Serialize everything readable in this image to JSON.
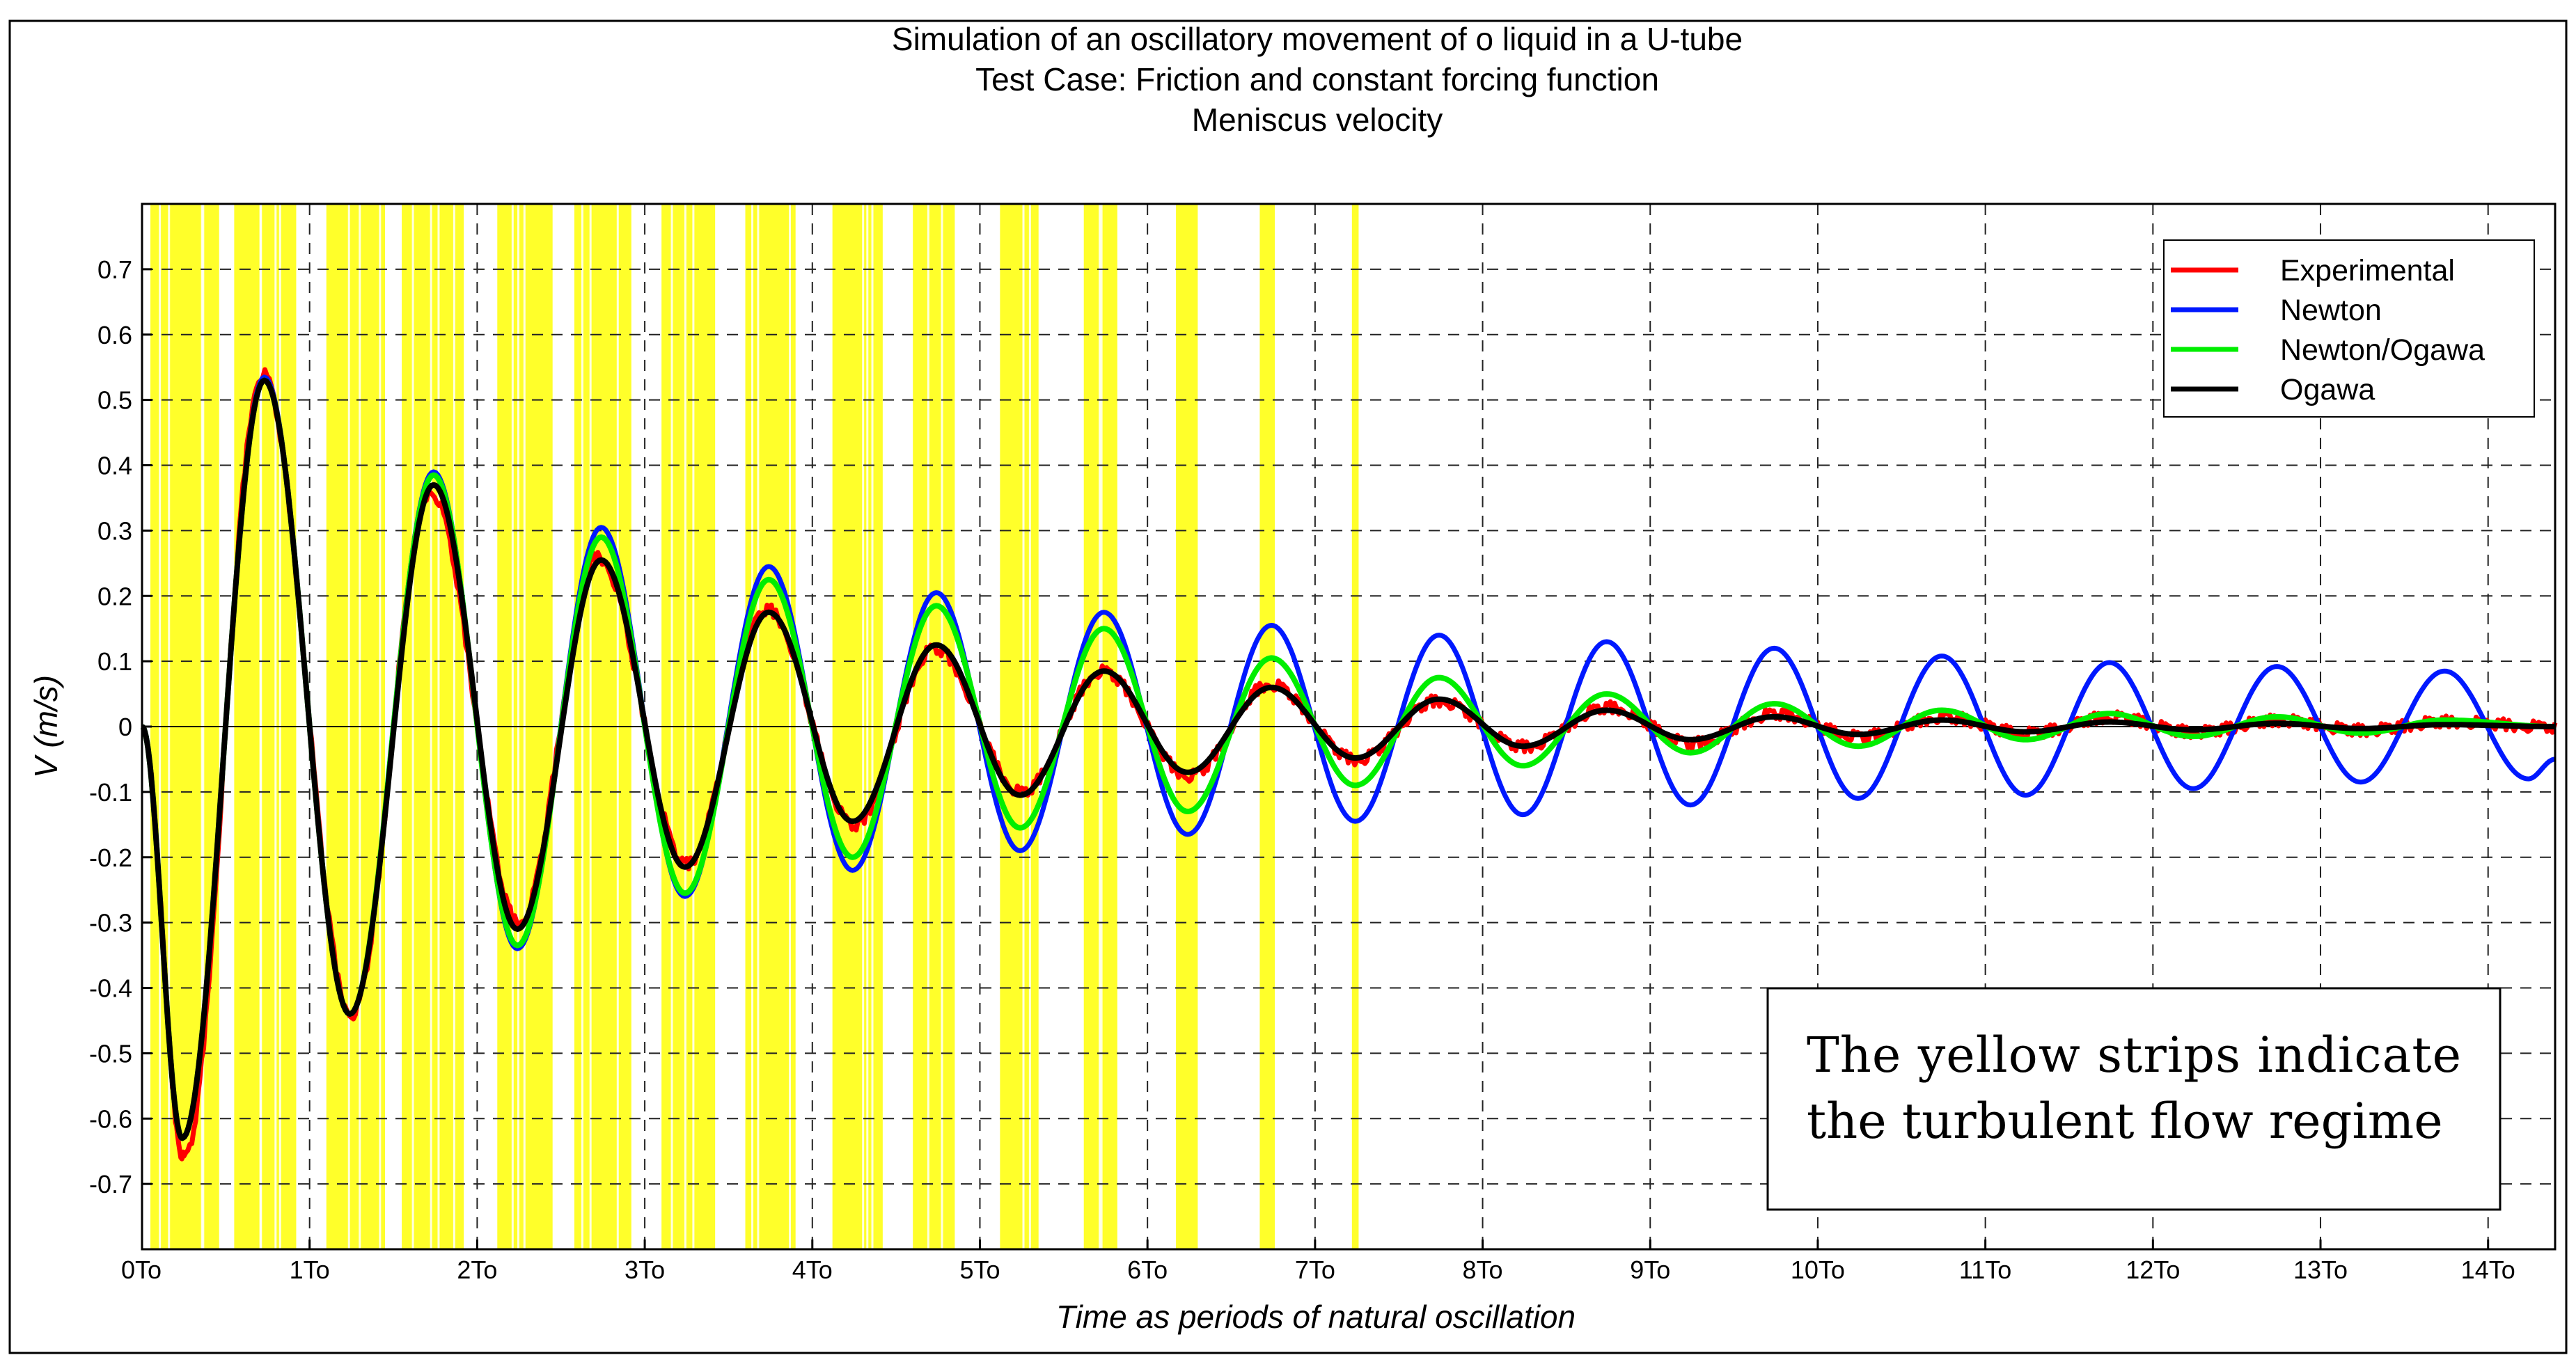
{
  "chart_data": {
    "type": "line",
    "title_lines": [
      "Simulation of an oscillatory movement of o liquid in a U-tube",
      "Test Case: Friction and constant forcing function",
      "Meniscus velocity"
    ],
    "xlabel": "Time as periods of natural oscillation",
    "ylabel": "V (m/s)",
    "xlim": [
      0,
      14.4
    ],
    "ylim": [
      -0.8,
      0.8
    ],
    "x_ticks": [
      0,
      1,
      2,
      3,
      4,
      5,
      6,
      7,
      8,
      9,
      10,
      11,
      12,
      13,
      14
    ],
    "x_tick_labels": [
      "0To",
      "1To",
      "2To",
      "3To",
      "4To",
      "5To",
      "6To",
      "7To",
      "8To",
      "9To",
      "10To",
      "11To",
      "12To",
      "13To",
      "14To"
    ],
    "y_ticks": [
      0.7,
      0.6,
      0.5,
      0.4,
      0.3,
      0.2,
      0.1,
      0,
      -0.1,
      -0.2,
      -0.3,
      -0.4,
      -0.5,
      -0.6,
      -0.7
    ],
    "y_tick_labels": [
      "0.7",
      "0.6",
      "0.5",
      "0.4",
      "0.3",
      "0.2",
      "0.1",
      "0",
      "-0.1",
      "-0.2",
      "-0.3",
      "-0.4",
      "-0.5",
      "-0.6",
      "-0.7"
    ],
    "grid": true,
    "legend_position": "top-right",
    "series": [
      {
        "name": "Experimental",
        "color": "#ff0000",
        "peaks": [
          [
            0.0,
            0.0
          ],
          [
            0.25,
            -0.66
          ],
          [
            0.72,
            0.54
          ],
          [
            1.25,
            -0.44
          ],
          [
            1.72,
            0.36
          ],
          [
            2.25,
            -0.3
          ],
          [
            2.72,
            0.26
          ],
          [
            3.25,
            -0.21
          ],
          [
            3.73,
            0.18
          ],
          [
            4.25,
            -0.15
          ],
          [
            4.73,
            0.12
          ],
          [
            5.25,
            -0.1
          ],
          [
            5.73,
            0.085
          ],
          [
            6.25,
            -0.075
          ],
          [
            6.73,
            0.065
          ],
          [
            7.25,
            -0.05
          ],
          [
            7.73,
            0.04
          ],
          [
            8.25,
            -0.03
          ],
          [
            8.75,
            0.03
          ],
          [
            9.25,
            -0.025
          ],
          [
            9.75,
            0.02
          ],
          [
            10.25,
            -0.015
          ],
          [
            10.75,
            0.015
          ],
          [
            11.25,
            -0.01
          ],
          [
            11.75,
            0.015
          ],
          [
            12.25,
            -0.008
          ],
          [
            12.75,
            0.01
          ],
          [
            13.25,
            -0.005
          ],
          [
            13.75,
            0.008
          ],
          [
            14.4,
            0.0
          ]
        ]
      },
      {
        "name": "Newton",
        "color": "#0018ff",
        "peaks": [
          [
            0.0,
            0.0
          ],
          [
            0.24,
            -0.63
          ],
          [
            0.73,
            0.535
          ],
          [
            1.24,
            -0.44
          ],
          [
            1.74,
            0.39
          ],
          [
            2.24,
            -0.34
          ],
          [
            2.74,
            0.305
          ],
          [
            3.24,
            -0.26
          ],
          [
            3.74,
            0.245
          ],
          [
            4.24,
            -0.22
          ],
          [
            4.74,
            0.205
          ],
          [
            5.24,
            -0.19
          ],
          [
            5.74,
            0.175
          ],
          [
            6.24,
            -0.165
          ],
          [
            6.74,
            0.155
          ],
          [
            7.24,
            -0.145
          ],
          [
            7.74,
            0.14
          ],
          [
            8.24,
            -0.135
          ],
          [
            8.74,
            0.13
          ],
          [
            9.24,
            -0.12
          ],
          [
            9.74,
            0.12
          ],
          [
            10.24,
            -0.11
          ],
          [
            10.74,
            0.108
          ],
          [
            11.24,
            -0.105
          ],
          [
            11.74,
            0.098
          ],
          [
            12.24,
            -0.095
          ],
          [
            12.74,
            0.092
          ],
          [
            13.24,
            -0.085
          ],
          [
            13.74,
            0.085
          ],
          [
            14.24,
            -0.08
          ],
          [
            14.4,
            -0.05
          ]
        ]
      },
      {
        "name": "Newton/Ogawa",
        "color": "#00ee00",
        "peaks": [
          [
            0.0,
            0.0
          ],
          [
            0.24,
            -0.63
          ],
          [
            0.73,
            0.53
          ],
          [
            1.24,
            -0.44
          ],
          [
            1.74,
            0.385
          ],
          [
            2.24,
            -0.335
          ],
          [
            2.74,
            0.29
          ],
          [
            3.24,
            -0.255
          ],
          [
            3.74,
            0.225
          ],
          [
            4.24,
            -0.2
          ],
          [
            4.74,
            0.185
          ],
          [
            5.24,
            -0.155
          ],
          [
            5.74,
            0.15
          ],
          [
            6.24,
            -0.13
          ],
          [
            6.74,
            0.105
          ],
          [
            7.24,
            -0.09
          ],
          [
            7.74,
            0.075
          ],
          [
            8.24,
            -0.06
          ],
          [
            8.74,
            0.05
          ],
          [
            9.24,
            -0.04
          ],
          [
            9.74,
            0.035
          ],
          [
            10.24,
            -0.03
          ],
          [
            10.74,
            0.025
          ],
          [
            11.24,
            -0.02
          ],
          [
            11.74,
            0.02
          ],
          [
            12.24,
            -0.015
          ],
          [
            12.74,
            0.015
          ],
          [
            13.24,
            -0.01
          ],
          [
            13.74,
            0.01
          ],
          [
            14.4,
            0.0
          ]
        ]
      },
      {
        "name": "Ogawa",
        "color": "#000000",
        "peaks": [
          [
            0.0,
            0.0
          ],
          [
            0.24,
            -0.63
          ],
          [
            0.73,
            0.53
          ],
          [
            1.24,
            -0.44
          ],
          [
            1.74,
            0.37
          ],
          [
            2.24,
            -0.31
          ],
          [
            2.74,
            0.255
          ],
          [
            3.24,
            -0.215
          ],
          [
            3.74,
            0.175
          ],
          [
            4.24,
            -0.145
          ],
          [
            4.74,
            0.125
          ],
          [
            5.24,
            -0.105
          ],
          [
            5.74,
            0.085
          ],
          [
            6.24,
            -0.07
          ],
          [
            6.74,
            0.06
          ],
          [
            7.24,
            -0.048
          ],
          [
            7.74,
            0.042
          ],
          [
            8.24,
            -0.03
          ],
          [
            8.74,
            0.025
          ],
          [
            9.24,
            -0.02
          ],
          [
            9.74,
            0.015
          ],
          [
            10.24,
            -0.012
          ],
          [
            10.74,
            0.01
          ],
          [
            11.24,
            -0.008
          ],
          [
            11.74,
            0.007
          ],
          [
            12.24,
            -0.005
          ],
          [
            12.74,
            0.005
          ],
          [
            13.24,
            -0.003
          ],
          [
            13.74,
            0.003
          ],
          [
            14.4,
            0.0
          ]
        ]
      }
    ],
    "turbulent_strips": [
      [
        0.05,
        0.46
      ],
      [
        0.55,
        0.92
      ],
      [
        1.1,
        1.45
      ],
      [
        1.55,
        1.92
      ],
      [
        2.12,
        2.45
      ],
      [
        2.58,
        2.92
      ],
      [
        3.1,
        3.42
      ],
      [
        3.6,
        3.9
      ],
      [
        4.12,
        4.42
      ],
      [
        4.6,
        4.85
      ],
      [
        5.12,
        5.35
      ],
      [
        5.62,
        5.82
      ],
      [
        6.17,
        6.3
      ],
      [
        6.67,
        6.76
      ],
      [
        7.22,
        7.26
      ]
    ],
    "annotation": {
      "lines": [
        "The yellow strips indicate",
        "the turbulent flow regime"
      ]
    }
  }
}
